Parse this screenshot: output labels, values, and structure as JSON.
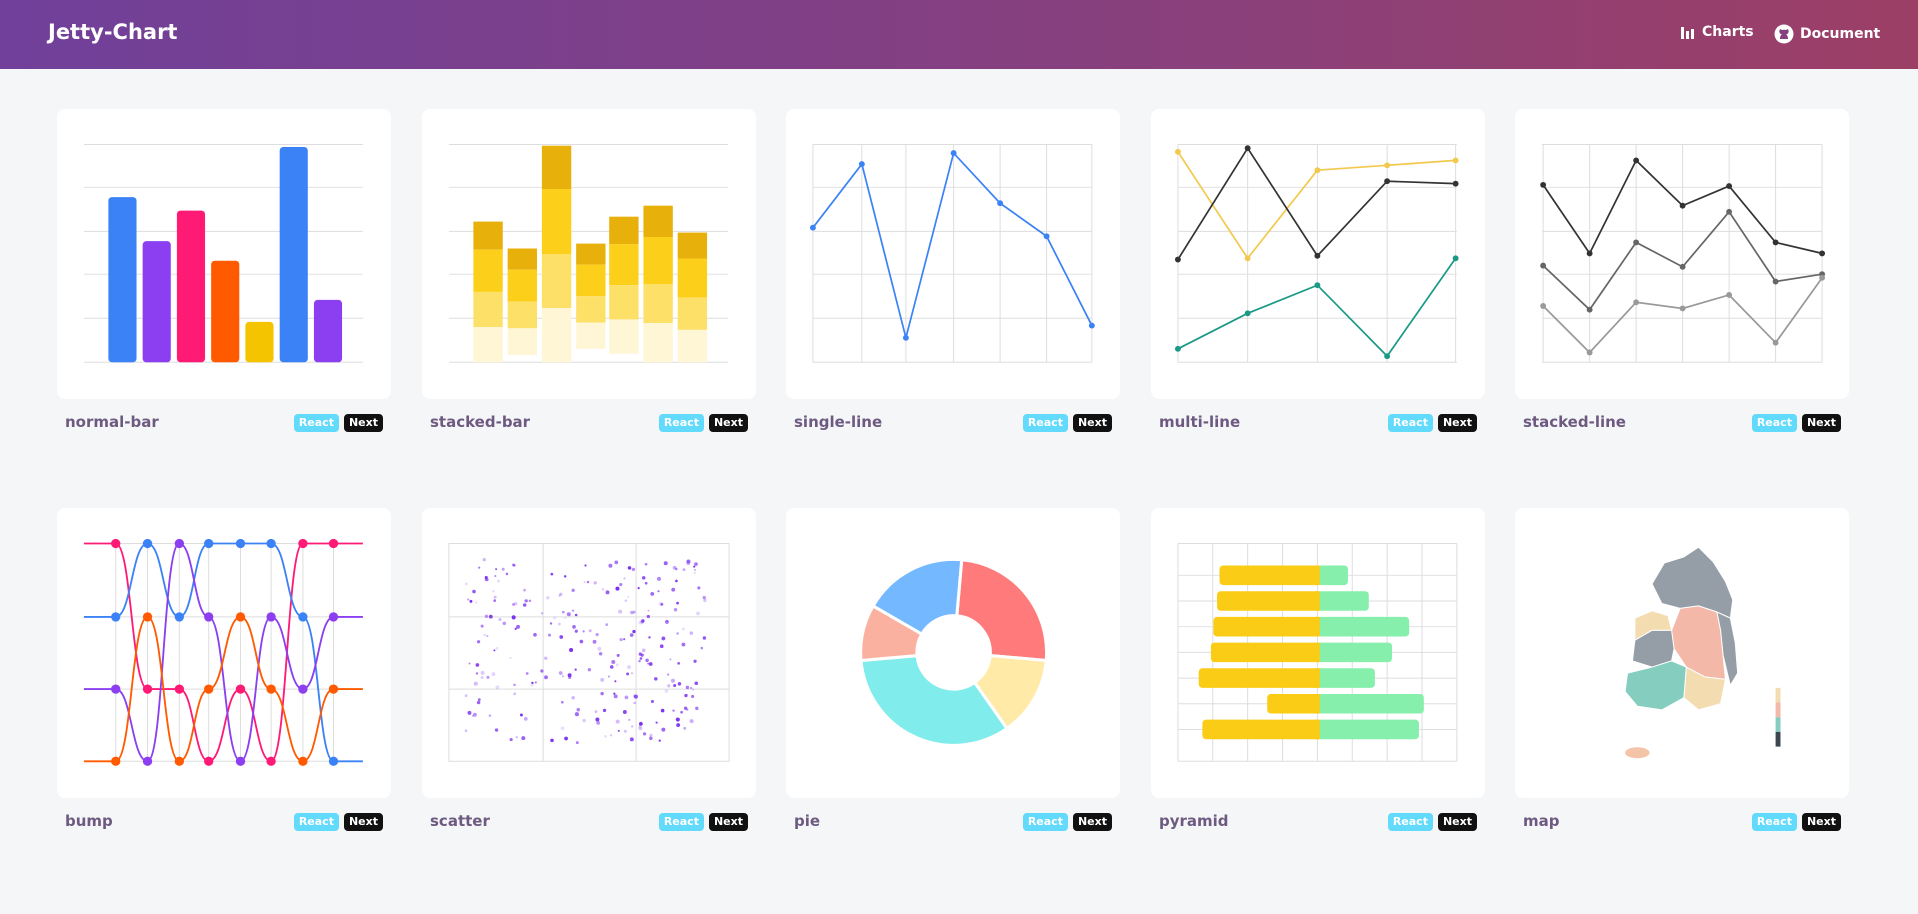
{
  "header": {
    "title": "Jetty-Chart",
    "nav": [
      "Charts",
      "Document"
    ]
  },
  "cards": [
    {
      "name": "normal-bar",
      "tags": [
        "React",
        "Next"
      ]
    },
    {
      "name": "stacked-bar",
      "tags": [
        "React",
        "Next"
      ]
    },
    {
      "name": "single-line",
      "tags": [
        "React",
        "Next"
      ]
    },
    {
      "name": "multi-line",
      "tags": [
        "React",
        "Next"
      ]
    },
    {
      "name": "stacked-line",
      "tags": [
        "React",
        "Next"
      ]
    },
    {
      "name": "bump",
      "tags": [
        "React",
        "Next"
      ]
    },
    {
      "name": "scatter",
      "tags": [
        "React",
        "Next"
      ]
    },
    {
      "name": "pie",
      "tags": [
        "React",
        "Next"
      ]
    },
    {
      "name": "pyramid",
      "tags": [
        "React",
        "Next"
      ]
    },
    {
      "name": "map",
      "tags": [
        "React",
        "Next"
      ]
    }
  ]
}
